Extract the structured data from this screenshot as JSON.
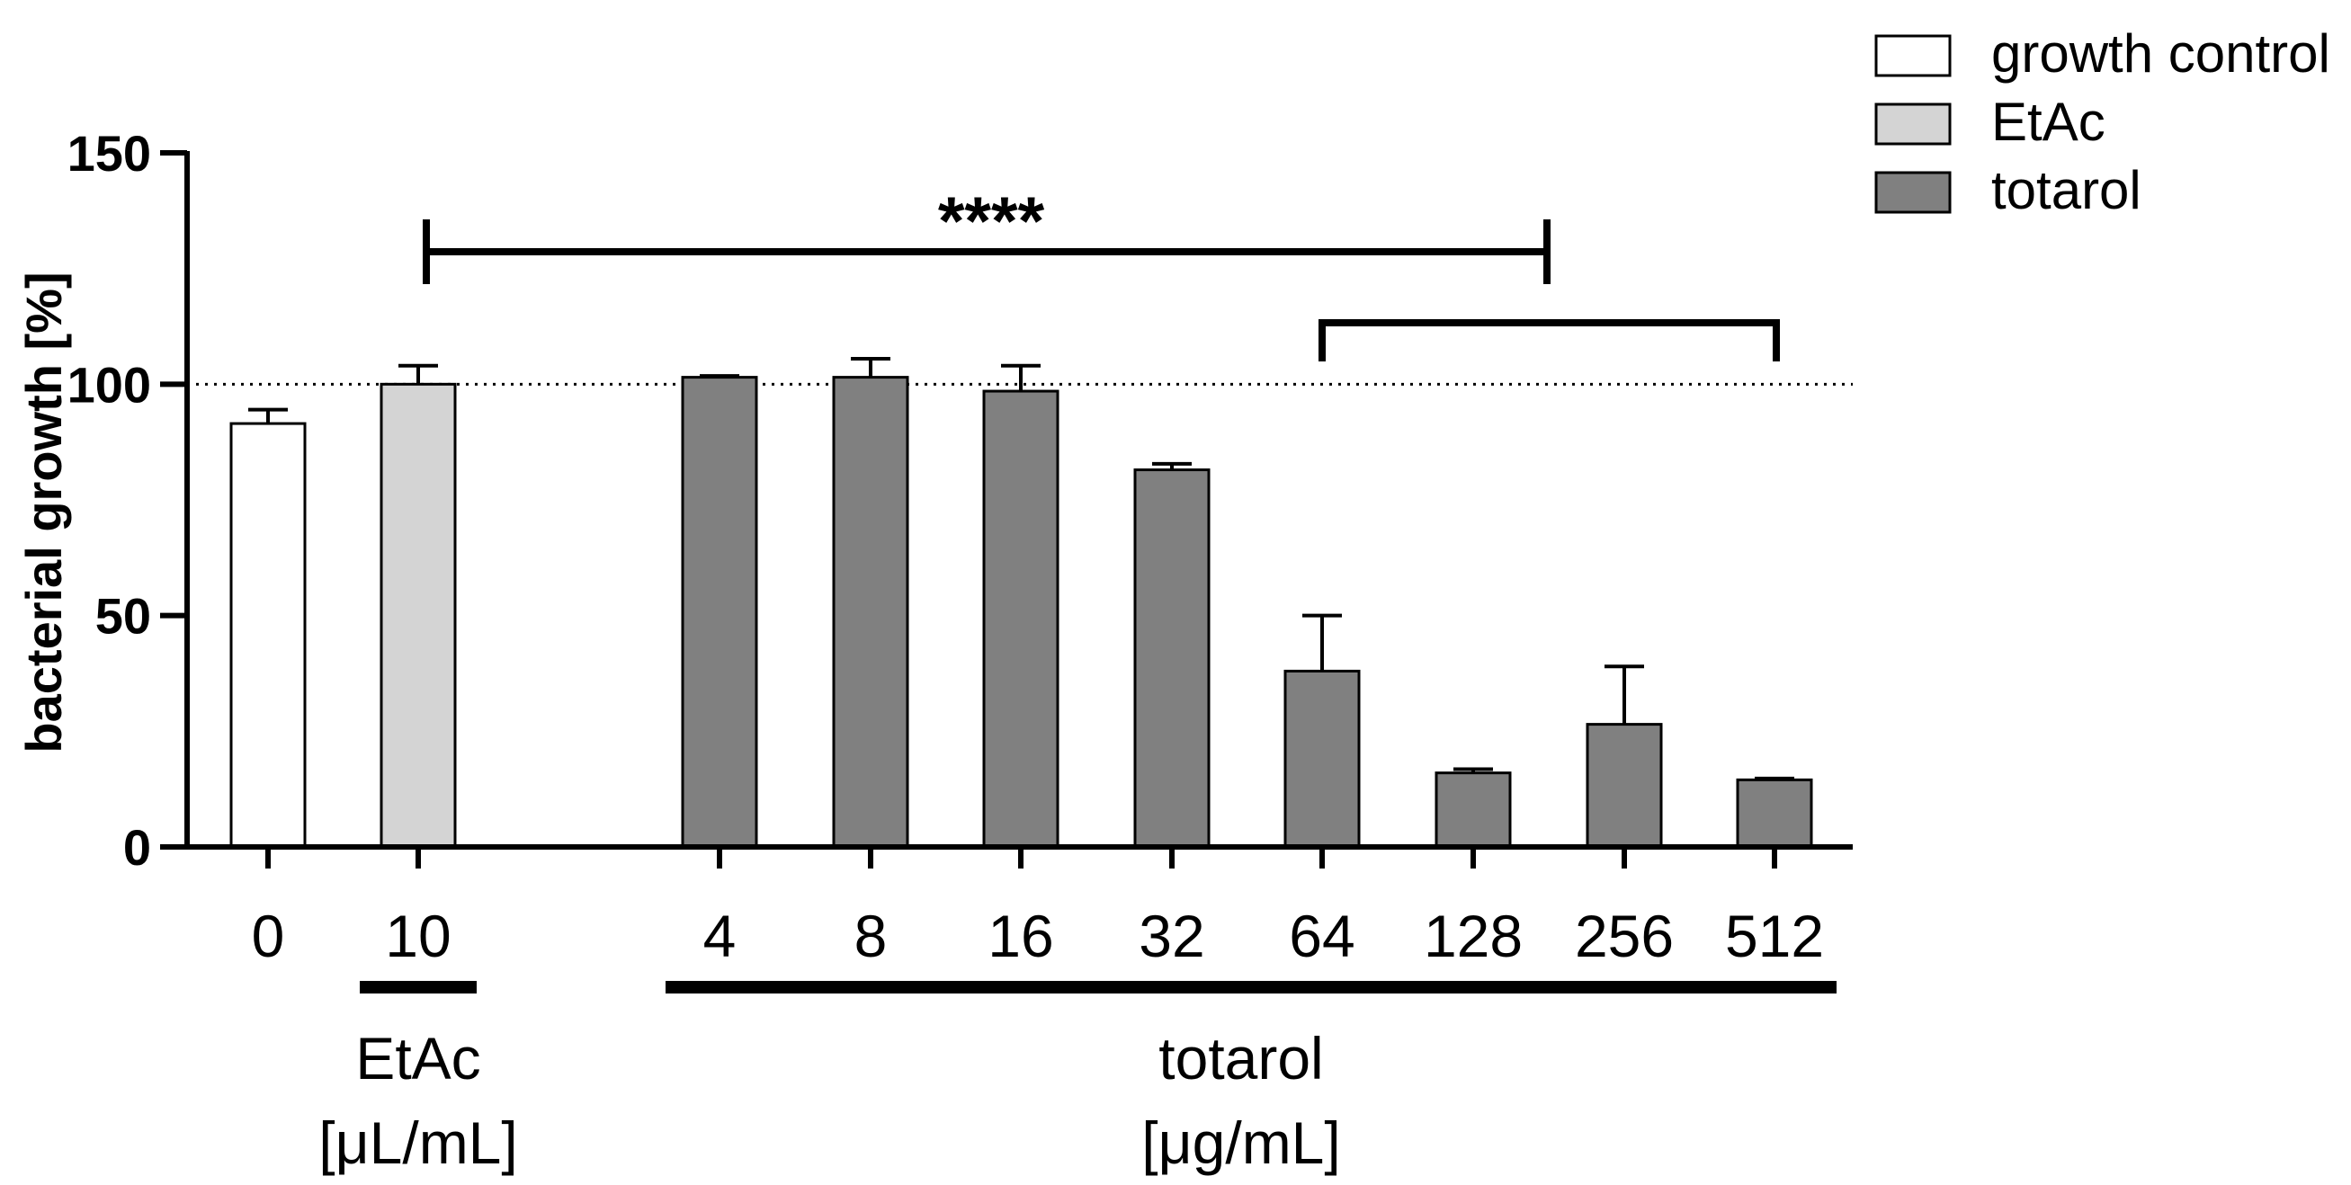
{
  "chart_data": {
    "type": "bar",
    "ylabel": "bacterial growth [%]",
    "ylim": [
      0,
      150
    ],
    "yticks": [
      0,
      50,
      100,
      150
    ],
    "reference_line": 100,
    "categories": [
      "0",
      "10",
      "4",
      "8",
      "16",
      "32",
      "64",
      "128",
      "256",
      "512"
    ],
    "series": [
      {
        "name": "growth control",
        "color": "#ffffff",
        "values": [
          91.5,
          null,
          null,
          null,
          null,
          null,
          null,
          null,
          null,
          null
        ],
        "errors": [
          3.0,
          null,
          null,
          null,
          null,
          null,
          null,
          null,
          null,
          null
        ]
      },
      {
        "name": "EtAc",
        "color": "#d4d4d4",
        "values": [
          null,
          100.0,
          null,
          null,
          null,
          null,
          null,
          null,
          null,
          null
        ],
        "errors": [
          null,
          4.0,
          null,
          null,
          null,
          null,
          null,
          null,
          null,
          null
        ]
      },
      {
        "name": "totarol",
        "color": "#808080",
        "values": [
          null,
          null,
          101.5,
          101.5,
          98.5,
          81.5,
          38.0,
          16.0,
          26.5,
          14.5
        ],
        "errors": [
          null,
          null,
          0.3,
          4.0,
          5.5,
          1.3,
          12.0,
          0.8,
          12.5,
          0.3
        ]
      }
    ],
    "groups": [
      {
        "label_line1": "EtAc",
        "label_line2": "[μL/mL]"
      },
      {
        "label_line1": "totarol",
        "label_line2": "[μg/mL]"
      }
    ],
    "annotations": [
      {
        "label": "****"
      }
    ],
    "legend": {
      "placement": "top-right"
    }
  }
}
